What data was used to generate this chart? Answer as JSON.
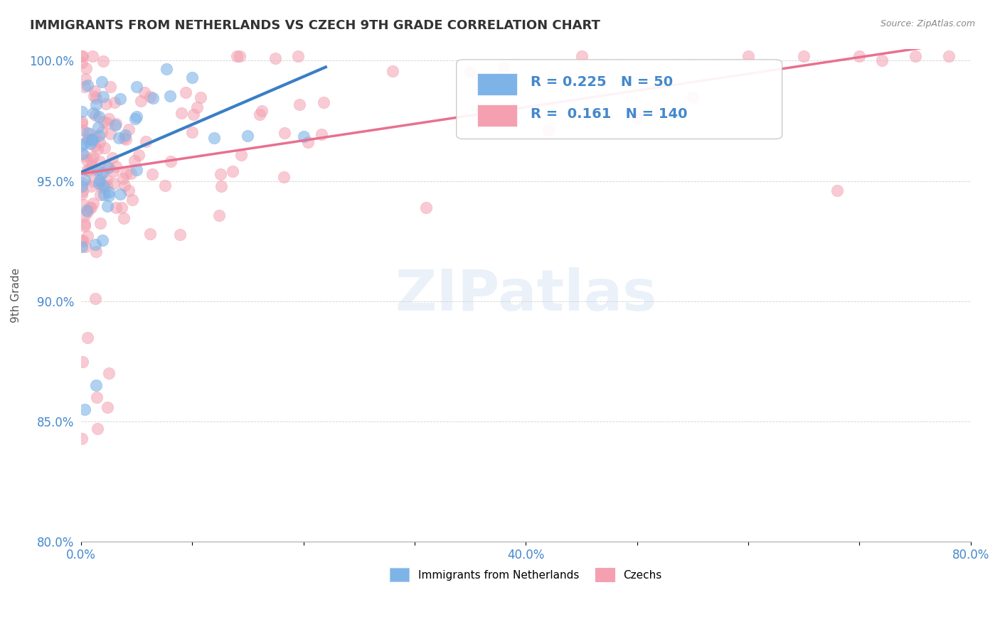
{
  "title": "IMMIGRANTS FROM NETHERLANDS VS CZECH 9TH GRADE CORRELATION CHART",
  "source": "Source: ZipAtlas.com",
  "ylabel": "9th Grade",
  "xlim": [
    0.0,
    0.8
  ],
  "ylim": [
    0.8,
    1.005
  ],
  "xticks": [
    0.0,
    0.1,
    0.2,
    0.3,
    0.4,
    0.5,
    0.6,
    0.7,
    0.8
  ],
  "xticklabels": [
    "0.0%",
    "",
    "",
    "",
    "40.0%",
    "",
    "",
    "",
    "80.0%"
  ],
  "yticks": [
    0.8,
    0.85,
    0.9,
    0.95,
    1.0
  ],
  "yticklabels": [
    "80.0%",
    "85.0%",
    "90.0%",
    "95.0%",
    "100.0%"
  ],
  "blue_R": 0.225,
  "blue_N": 50,
  "pink_R": 0.161,
  "pink_N": 140,
  "blue_color": "#7EB3E8",
  "pink_color": "#F4A0B0",
  "blue_line_color": "#3A7EC6",
  "pink_line_color": "#E87090",
  "watermark": "ZIPatlas",
  "legend_label_blue": "Immigrants from Netherlands",
  "legend_label_pink": "Czechs"
}
